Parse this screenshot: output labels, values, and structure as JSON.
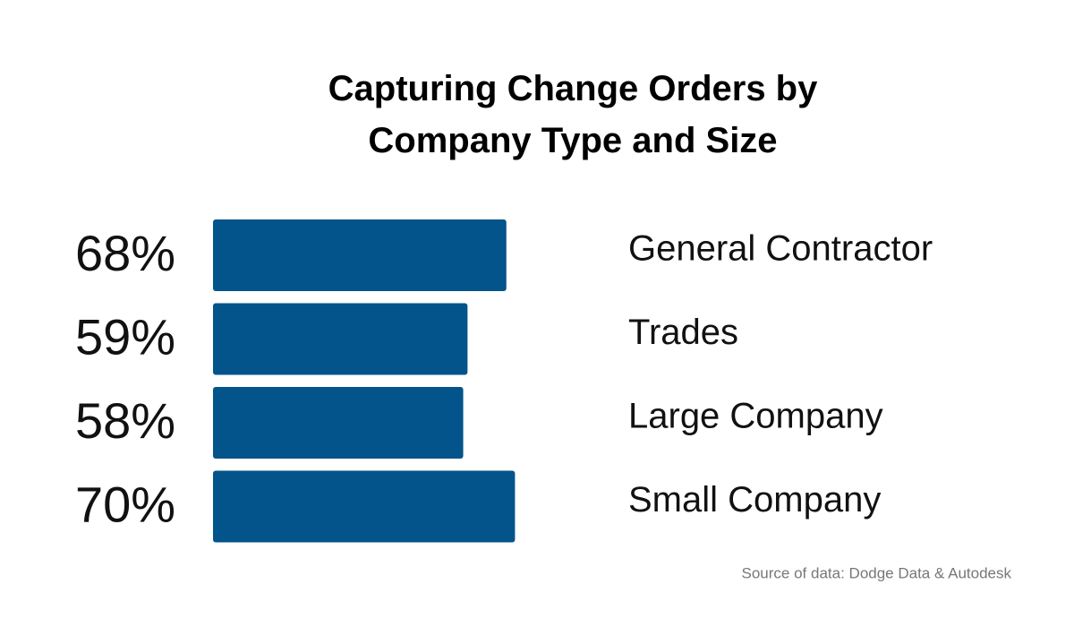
{
  "chart_data": {
    "type": "bar",
    "orientation": "horizontal",
    "title": "Capturing Change Orders by Company Type and Size",
    "categories": [
      "General Contractor",
      "Trades",
      "Large Company",
      "Small Company"
    ],
    "values": [
      68,
      59,
      58,
      70
    ],
    "value_labels": [
      "68%",
      "59%",
      "58%",
      "70%"
    ],
    "color": "#03548b",
    "source": "Source of data: Dodge Data & Autodesk"
  }
}
